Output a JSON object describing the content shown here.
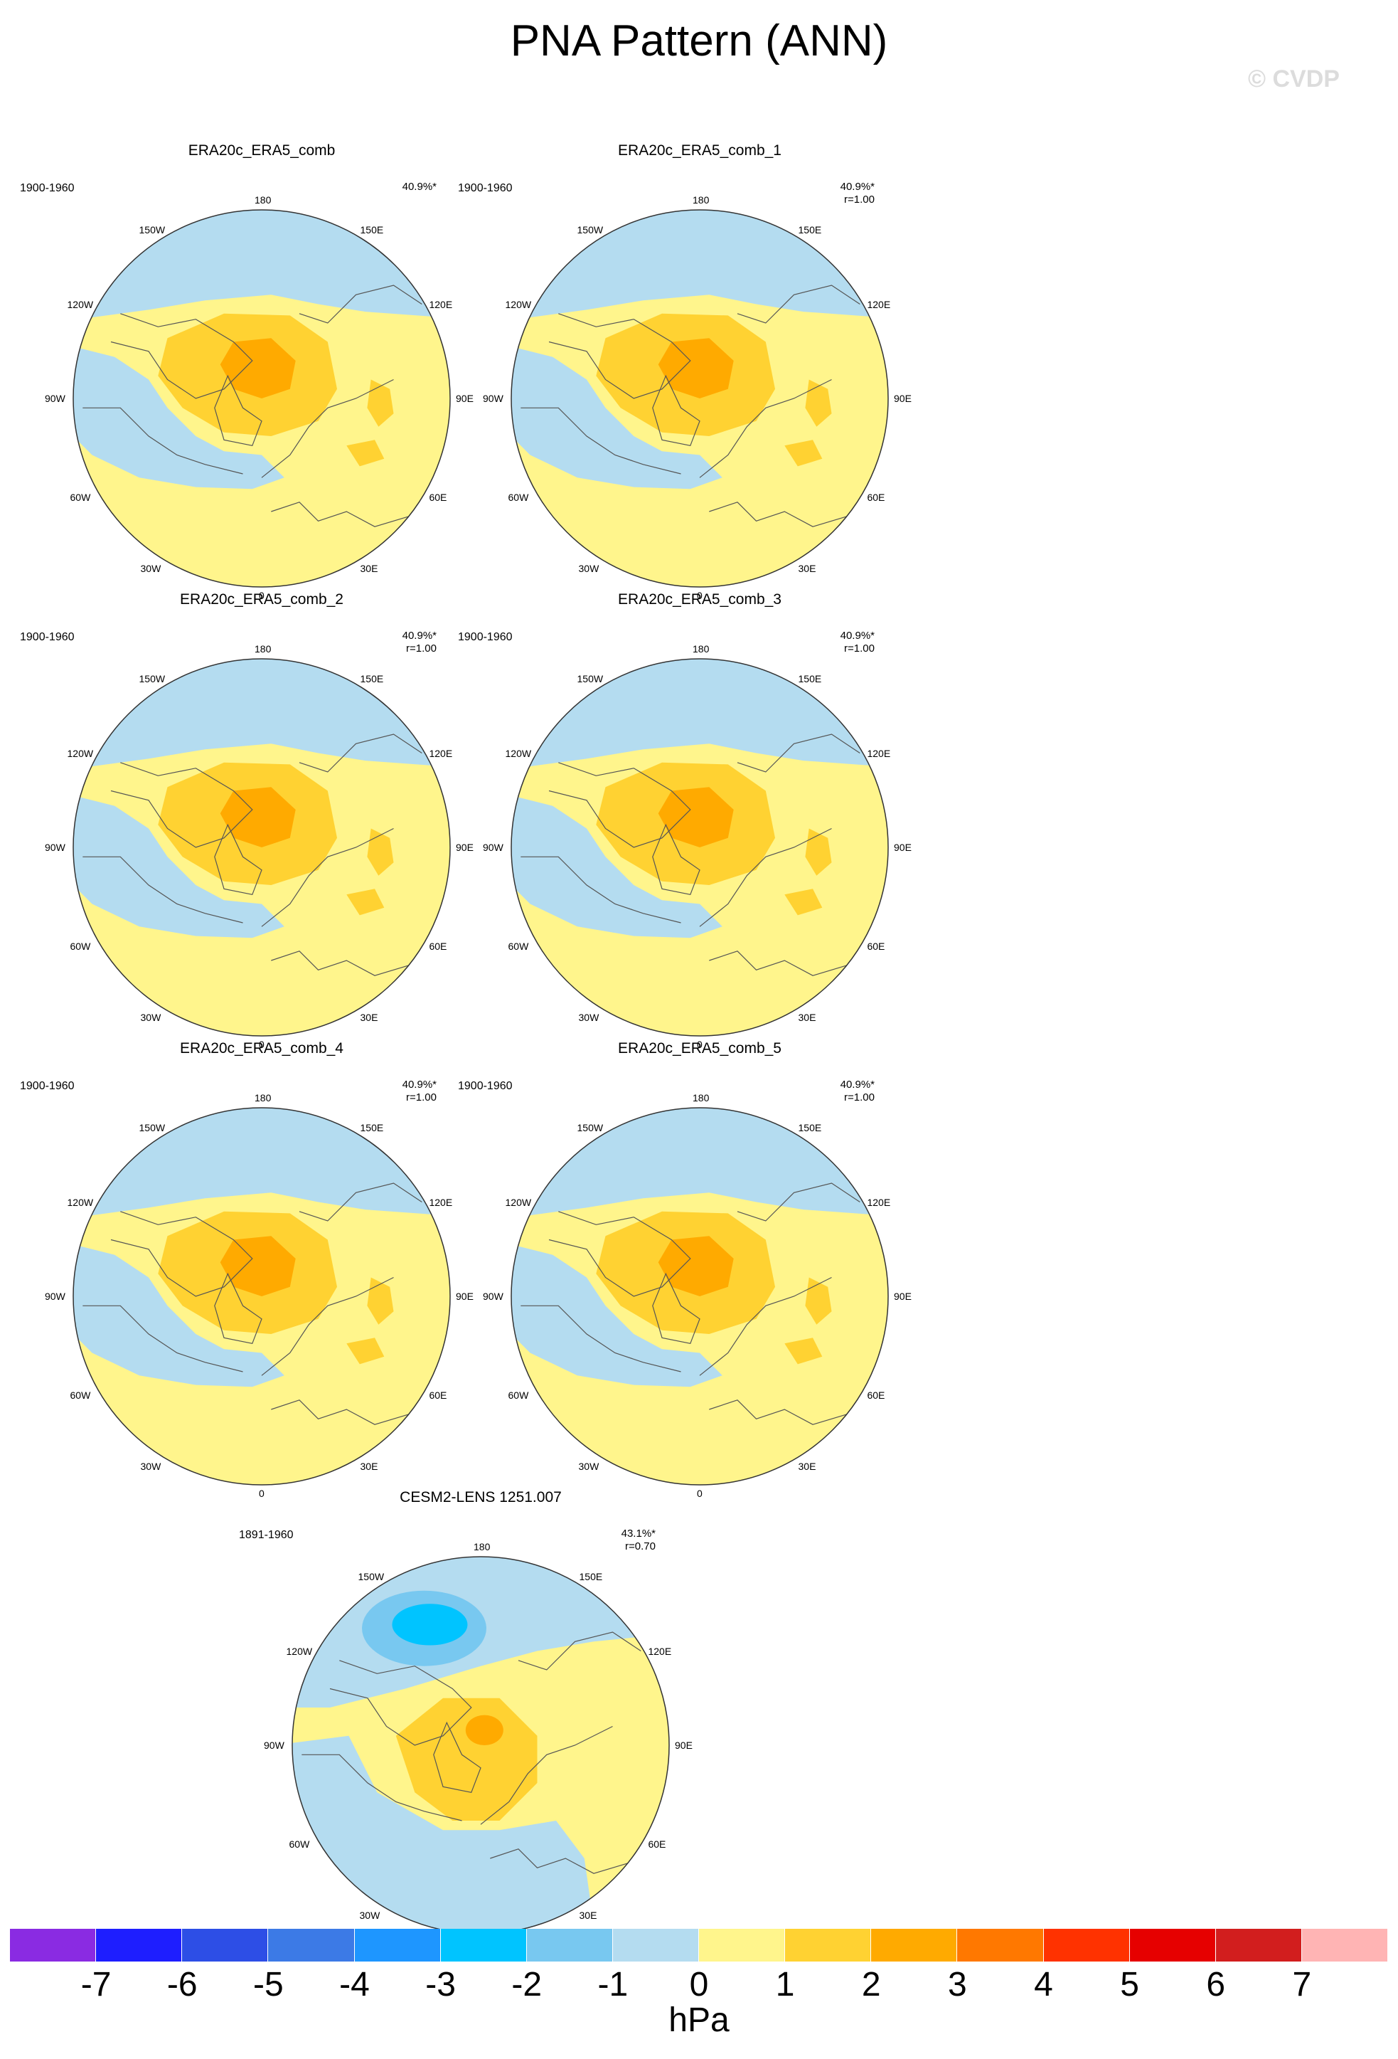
{
  "figure": {
    "title": "PNA Pattern (ANN)",
    "credit": "© CVDP"
  },
  "panels": [
    {
      "id": "p0",
      "title": "ERA20c_ERA5_comb",
      "period": "1900-1960",
      "pct": "40.9%*",
      "r": "",
      "variant": "obs"
    },
    {
      "id": "p1",
      "title": "ERA20c_ERA5_comb_1",
      "period": "1900-1960",
      "pct": "40.9%*",
      "r": "r=1.00",
      "variant": "obs"
    },
    {
      "id": "p2",
      "title": "ERA20c_ERA5_comb_2",
      "period": "1900-1960",
      "pct": "40.9%*",
      "r": "r=1.00",
      "variant": "obs"
    },
    {
      "id": "p3",
      "title": "ERA20c_ERA5_comb_3",
      "period": "1900-1960",
      "pct": "40.9%*",
      "r": "r=1.00",
      "variant": "obs"
    },
    {
      "id": "p4",
      "title": "ERA20c_ERA5_comb_4",
      "period": "1900-1960",
      "pct": "40.9%*",
      "r": "r=1.00",
      "variant": "obs"
    },
    {
      "id": "p5",
      "title": "ERA20c_ERA5_comb_5",
      "period": "1900-1960",
      "pct": "40.9%*",
      "r": "r=1.00",
      "variant": "obs"
    },
    {
      "id": "p6",
      "title": "CESM2-LENS 1251.007",
      "period": "1891-1960",
      "pct": "43.1%*",
      "r": "r=0.70",
      "variant": "model"
    }
  ],
  "lon_labels": {
    "top": "180",
    "bottom": "0",
    "left": "90W",
    "right": "90E",
    "upper_left_1": "150W",
    "upper_left_2": "120W",
    "upper_right_1": "150E",
    "upper_right_2": "120E",
    "lower_left_1": "60W",
    "lower_left_2": "30W",
    "lower_right_1": "60E",
    "lower_right_2": "30E"
  },
  "colorbar": {
    "units": "hPa",
    "colors": [
      "#8a2be2",
      "#1e1eff",
      "#2d4ee6",
      "#3c7ae6",
      "#1e96ff",
      "#00c4ff",
      "#78c8f0",
      "#b4dcf0",
      "#fff58c",
      "#ffd232",
      "#ffaa00",
      "#ff7800",
      "#ff3200",
      "#e60000",
      "#d21e1e",
      "#ffb4b4"
    ],
    "ticks": [
      "-7",
      "-6",
      "-5",
      "-4",
      "-3",
      "-2",
      "-1",
      "0",
      "1",
      "2",
      "3",
      "4",
      "5",
      "6",
      "7"
    ]
  },
  "fill_colors": {
    "ocean_blue": "#b4dcf0",
    "light_blue": "#78c8f0",
    "cyan": "#00c4ff",
    "yellow": "#fff58c",
    "gold": "#ffd232",
    "orange": "#ffaa00"
  }
}
